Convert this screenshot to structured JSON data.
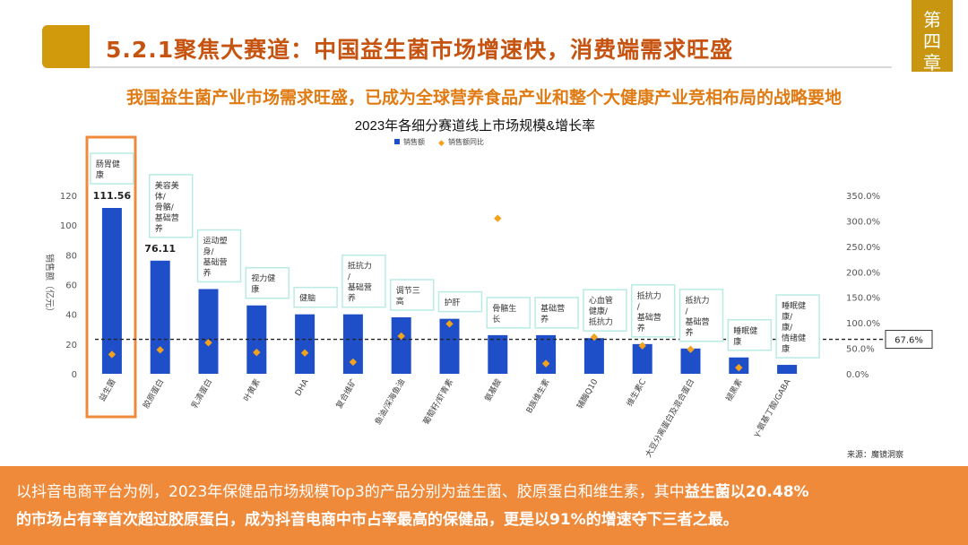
{
  "header": {
    "title": "5.2.1聚焦大赛道：中国益生菌市场增速快，消费端需求旺盛",
    "chapter_tab": "第四章"
  },
  "subheading": "我国益生菌产业市场需求旺盛，已成为全球营养食品产业和整个大健康产业竞相布局的战略要地",
  "chart_data": {
    "type": "bar",
    "title": "2023年各细分赛道线上市场规模&增长率",
    "ylabel": "销售额（亿元）",
    "legend": [
      "销售额",
      "销售额同比"
    ],
    "ylim": [
      0,
      120
    ],
    "yticks": [
      "0",
      "20",
      "40",
      "60",
      "80",
      "100",
      "120"
    ],
    "y2lim": [
      0,
      350
    ],
    "y2ticks": [
      "0.0%",
      "50.0%",
      "100.0%",
      "150.0%",
      "200.0%",
      "250.0%",
      "300.0%",
      "350.0%"
    ],
    "reference_line": {
      "value": 67.6,
      "label": "67.6%"
    },
    "categories": [
      "益生菌",
      "胶原蛋白",
      "乳清蛋白",
      "叶黄素",
      "DHA",
      "复合维矿",
      "鱼油/深海鱼油",
      "葡萄籽/虾青素",
      "氨基酸",
      "B族维生素",
      "辅酶Q10",
      "维生素C",
      "大豆分离蛋白及混合蛋白",
      "褪黑素",
      "γ-氨基丁酸/GABA"
    ],
    "values": [
      111.56,
      76.11,
      57,
      46,
      40,
      40,
      38,
      37,
      26,
      26,
      24,
      20,
      17,
      11,
      6
    ],
    "value_labels": [
      "111.56",
      "76.11",
      "",
      "",
      "",
      "",
      "",
      "",
      "",
      "",
      "",
      "",
      "",
      "",
      ""
    ],
    "growth_pct": [
      38,
      47,
      61,
      42,
      41,
      23,
      74,
      98,
      305,
      20,
      72,
      55,
      48,
      12,
      55
    ],
    "annotations": [
      "肠胃健康",
      "美容美体/骨骼/基础营养",
      "运动塑身/基础营养",
      "视力健康",
      "健脑",
      "抵抗力/基础营养",
      "调节三高",
      "护肝",
      "骨骼生长",
      "基础营养",
      "心血管健康/抵抗力",
      "抵抗力/基础营养",
      "抵抗力/基础营养",
      "睡眠健康",
      "睡眠健康/康/情绪健康"
    ],
    "highlight_category": "益生菌",
    "bar_color": "#1f4fc8",
    "point_color": "#f3a21b"
  },
  "source_note": "来源：魔镜洞察",
  "bottom": {
    "line1_prefix": "以抖音电商平台为例，2023年保健品市场规模Top3的产品分别为益生菌、胶原蛋白和维生素，其中",
    "line1_bold": "益生菌以20.48%",
    "line2_bold": "的市场占有率首次超过胶原蛋白，成为抖音电商中市占率最高的保健品，更是以91%的增速夺下三者之最。"
  }
}
